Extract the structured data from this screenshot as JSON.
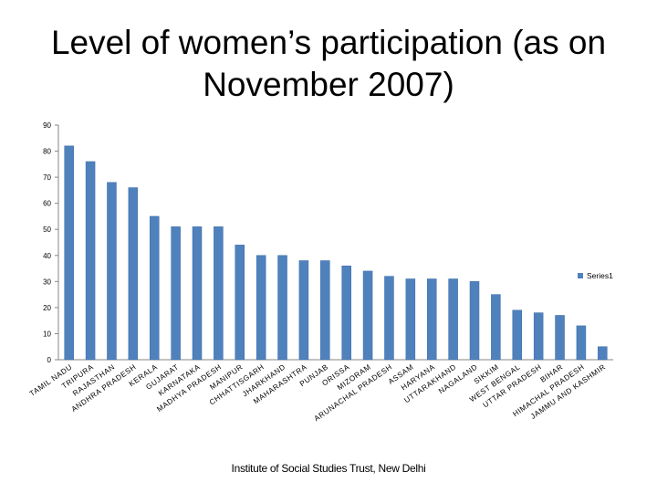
{
  "title": "Level of women’s participation (as on November 2007)",
  "footer": "Institute of Social Studies Trust, New Delhi",
  "chart_data": {
    "type": "bar",
    "categories": [
      "TAMIL NADU",
      "TRIPURA",
      "RAJASTHAN",
      "ANDHRA PRADESH",
      "KERALA",
      "GUJARAT",
      "KARNATAKA",
      "MADHYA PRADESH",
      "MANIPUR",
      "CHHATTISGARH",
      "JHARKHAND",
      "MAHARASHTRA",
      "PUNJAB",
      "ORISSA",
      "MIZORAM",
      "ARUNACHAL PRADESH",
      "ASSAM",
      "HARYANA",
      "UTTARAKHAND",
      "NAGALAND",
      "SIKKIM",
      "WEST BENGAL",
      "UTTAR PRADESH",
      "BIHAR",
      "HIMACHAL PRADESH",
      "JAMMU AND KASHMIR"
    ],
    "series": [
      {
        "name": "Series1",
        "values": [
          82,
          76,
          68,
          66,
          55,
          51,
          51,
          51,
          44,
          40,
          40,
          38,
          38,
          36,
          34,
          32,
          31,
          31,
          31,
          30,
          25,
          19,
          18,
          17,
          13,
          5
        ]
      }
    ],
    "ylim": [
      0,
      90
    ],
    "yticks": [
      0,
      10,
      20,
      30,
      40,
      50,
      60,
      70,
      80,
      90
    ],
    "grid": false,
    "legend": "right",
    "colors": {
      "bar": "#4f81bd",
      "bar_edge": "#3a6ca3",
      "axis": "#868686"
    }
  }
}
